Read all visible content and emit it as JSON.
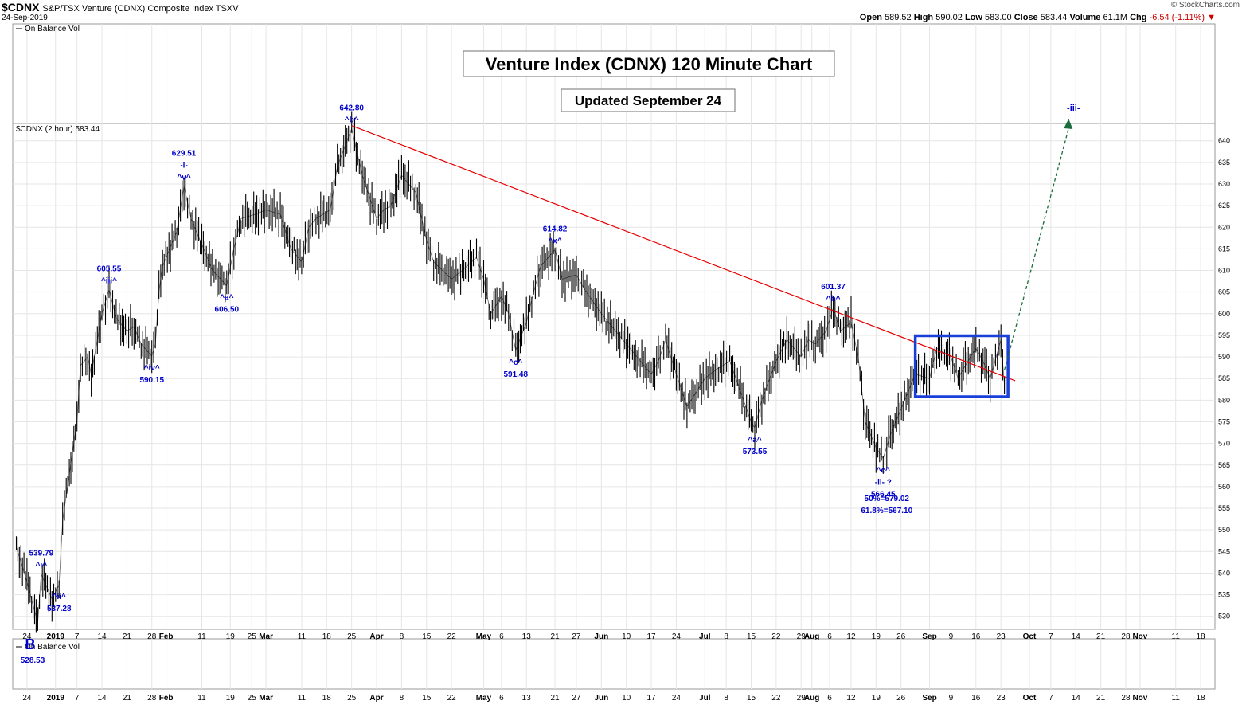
{
  "header": {
    "symbol": "$CDNX",
    "name": "S&P/TSX Venture (CDNX) Composite Index  TSXV",
    "date": "24-Sep-2019",
    "open_label": "Open",
    "open": "589.52",
    "high_label": "High",
    "high": "590.02",
    "low_label": "Low",
    "low": "583.00",
    "close_label": "Close",
    "close": "583.44",
    "volume_label": "Volume",
    "volume": "61.1M",
    "chg_label": "Chg",
    "chg": "-6.54 (-1.11%)",
    "credit": "© StockCharts.com"
  },
  "colors": {
    "price": "#000000",
    "trendline": "#e60000",
    "annotation": "#0000cc",
    "box": "#1a3fd8",
    "projection": "#1b6e3c",
    "grid": "#e6e6e6",
    "frame": "#999999"
  },
  "chart_data": {
    "type": "line",
    "title": "Venture Index (CDNX) 120 Minute Chart",
    "subtitle": "Updated September 24",
    "legend_top": "On Balance Vol",
    "legend_bottom": "On Balance Vol",
    "price_label": "$CDNX (2 hour) 583.44",
    "ylim": [
      527,
      644
    ],
    "y_ticks": [
      530,
      535,
      540,
      545,
      550,
      555,
      560,
      565,
      570,
      575,
      580,
      585,
      590,
      595,
      600,
      605,
      610,
      615,
      620,
      625,
      630,
      635,
      640
    ],
    "x_ticks": [
      {
        "label": "24",
        "date": "2018-12-24"
      },
      {
        "label": "2019",
        "date": "2019-01-01",
        "bold": true
      },
      {
        "label": "7",
        "date": "2019-01-07"
      },
      {
        "label": "14",
        "date": "2019-01-14"
      },
      {
        "label": "21",
        "date": "2019-01-21"
      },
      {
        "label": "28",
        "date": "2019-01-28"
      },
      {
        "label": "Feb",
        "date": "2019-02-01",
        "bold": true
      },
      {
        "label": "11",
        "date": "2019-02-11"
      },
      {
        "label": "19",
        "date": "2019-02-19"
      },
      {
        "label": "25",
        "date": "2019-02-25"
      },
      {
        "label": "Mar",
        "date": "2019-03-01",
        "bold": true
      },
      {
        "label": "11",
        "date": "2019-03-11"
      },
      {
        "label": "18",
        "date": "2019-03-18"
      },
      {
        "label": "25",
        "date": "2019-03-25"
      },
      {
        "label": "Apr",
        "date": "2019-04-01",
        "bold": true
      },
      {
        "label": "8",
        "date": "2019-04-08"
      },
      {
        "label": "15",
        "date": "2019-04-15"
      },
      {
        "label": "22",
        "date": "2019-04-22"
      },
      {
        "label": "May",
        "date": "2019-05-01",
        "bold": true
      },
      {
        "label": "6",
        "date": "2019-05-06"
      },
      {
        "label": "13",
        "date": "2019-05-13"
      },
      {
        "label": "21",
        "date": "2019-05-21"
      },
      {
        "label": "27",
        "date": "2019-05-27"
      },
      {
        "label": "Jun",
        "date": "2019-06-03",
        "bold": true
      },
      {
        "label": "10",
        "date": "2019-06-10"
      },
      {
        "label": "17",
        "date": "2019-06-17"
      },
      {
        "label": "24",
        "date": "2019-06-24"
      },
      {
        "label": "Jul",
        "date": "2019-07-02",
        "bold": true
      },
      {
        "label": "8",
        "date": "2019-07-08"
      },
      {
        "label": "15",
        "date": "2019-07-15"
      },
      {
        "label": "22",
        "date": "2019-07-22"
      },
      {
        "label": "29",
        "date": "2019-07-29"
      },
      {
        "label": "Aug",
        "date": "2019-08-01",
        "bold": true
      },
      {
        "label": "6",
        "date": "2019-08-06"
      },
      {
        "label": "12",
        "date": "2019-08-12"
      },
      {
        "label": "19",
        "date": "2019-08-19"
      },
      {
        "label": "26",
        "date": "2019-08-26"
      },
      {
        "label": "Sep",
        "date": "2019-09-03",
        "bold": true
      },
      {
        "label": "9",
        "date": "2019-09-09"
      },
      {
        "label": "16",
        "date": "2019-09-16"
      },
      {
        "label": "23",
        "date": "2019-09-23"
      },
      {
        "label": "Oct",
        "date": "2019-10-01",
        "bold": true
      },
      {
        "label": "7",
        "date": "2019-10-07"
      },
      {
        "label": "14",
        "date": "2019-10-14"
      },
      {
        "label": "21",
        "date": "2019-10-21"
      },
      {
        "label": "28",
        "date": "2019-10-28"
      },
      {
        "label": "Nov",
        "date": "2019-11-01",
        "bold": true
      },
      {
        "label": "11",
        "date": "2019-11-11"
      },
      {
        "label": "18",
        "date": "2019-11-18"
      }
    ],
    "series": [
      {
        "values": [
          [
            "2018-12-21",
            546
          ],
          [
            "2018-12-24",
            538
          ],
          [
            "2018-12-27",
            528.5
          ],
          [
            "2018-12-28",
            539.8
          ],
          [
            "2018-12-31",
            534
          ],
          [
            "2019-01-02",
            537.3
          ],
          [
            "2019-01-03",
            552
          ],
          [
            "2019-01-04",
            558
          ],
          [
            "2019-01-07",
            575
          ],
          [
            "2019-01-08",
            588
          ],
          [
            "2019-01-10",
            590
          ],
          [
            "2019-01-11",
            586
          ],
          [
            "2019-01-14",
            600
          ],
          [
            "2019-01-16",
            605.6
          ],
          [
            "2019-01-18",
            599
          ],
          [
            "2019-01-21",
            596
          ],
          [
            "2019-01-23",
            597
          ],
          [
            "2019-01-25",
            593
          ],
          [
            "2019-01-28",
            590.2
          ],
          [
            "2019-01-29",
            593
          ],
          [
            "2019-01-30",
            605
          ],
          [
            "2019-01-31",
            611
          ],
          [
            "2019-02-04",
            619
          ],
          [
            "2019-02-06",
            629.5
          ],
          [
            "2019-02-08",
            622
          ],
          [
            "2019-02-11",
            616
          ],
          [
            "2019-02-14",
            610
          ],
          [
            "2019-02-18",
            606.5
          ],
          [
            "2019-02-20",
            615
          ],
          [
            "2019-02-22",
            622
          ],
          [
            "2019-02-26",
            623
          ],
          [
            "2019-03-01",
            624
          ],
          [
            "2019-03-05",
            623
          ],
          [
            "2019-03-08",
            615
          ],
          [
            "2019-03-11",
            612
          ],
          [
            "2019-03-13",
            620
          ],
          [
            "2019-03-15",
            622
          ],
          [
            "2019-03-19",
            624
          ],
          [
            "2019-03-21",
            634
          ],
          [
            "2019-03-25",
            642.8
          ],
          [
            "2019-03-28",
            632
          ],
          [
            "2019-04-01",
            622
          ],
          [
            "2019-04-03",
            624
          ],
          [
            "2019-04-05",
            625
          ],
          [
            "2019-04-08",
            632
          ],
          [
            "2019-04-10",
            630
          ],
          [
            "2019-04-12",
            628
          ],
          [
            "2019-04-15",
            617
          ],
          [
            "2019-04-17",
            612
          ],
          [
            "2019-04-22",
            608
          ],
          [
            "2019-04-25",
            610
          ],
          [
            "2019-04-29",
            613
          ],
          [
            "2019-05-01",
            608
          ],
          [
            "2019-05-03",
            600
          ],
          [
            "2019-05-06",
            604
          ],
          [
            "2019-05-08",
            600
          ],
          [
            "2019-05-10",
            591.5
          ],
          [
            "2019-05-13",
            598
          ],
          [
            "2019-05-15",
            605
          ],
          [
            "2019-05-17",
            611
          ],
          [
            "2019-05-21",
            614.8
          ],
          [
            "2019-05-23",
            608
          ],
          [
            "2019-05-27",
            609
          ],
          [
            "2019-05-29",
            606
          ],
          [
            "2019-06-03",
            600
          ],
          [
            "2019-06-06",
            597
          ],
          [
            "2019-06-10",
            593
          ],
          [
            "2019-06-13",
            590
          ],
          [
            "2019-06-17",
            586
          ],
          [
            "2019-06-19",
            589
          ],
          [
            "2019-06-21",
            594
          ],
          [
            "2019-06-24",
            586
          ],
          [
            "2019-06-27",
            578.5
          ],
          [
            "2019-07-02",
            585
          ],
          [
            "2019-07-05",
            587
          ],
          [
            "2019-07-09",
            589
          ],
          [
            "2019-07-12",
            582
          ],
          [
            "2019-07-15",
            575
          ],
          [
            "2019-07-16",
            573.6
          ],
          [
            "2019-07-18",
            580
          ],
          [
            "2019-07-22",
            589
          ],
          [
            "2019-07-25",
            594
          ],
          [
            "2019-07-29",
            590
          ],
          [
            "2019-07-31",
            594
          ],
          [
            "2019-08-02",
            593
          ],
          [
            "2019-08-05",
            596
          ],
          [
            "2019-08-07",
            601.4
          ],
          [
            "2019-08-09",
            596
          ],
          [
            "2019-08-12",
            598
          ],
          [
            "2019-08-14",
            590
          ],
          [
            "2019-08-16",
            575
          ],
          [
            "2019-08-19",
            569
          ],
          [
            "2019-08-21",
            566.5
          ],
          [
            "2019-08-23",
            572
          ],
          [
            "2019-08-27",
            580
          ],
          [
            "2019-08-30",
            586
          ],
          [
            "2019-09-03",
            585
          ],
          [
            "2019-09-05",
            592
          ],
          [
            "2019-09-09",
            590
          ],
          [
            "2019-09-11",
            585
          ],
          [
            "2019-09-13",
            588
          ],
          [
            "2019-09-16",
            592
          ],
          [
            "2019-09-18",
            589
          ],
          [
            "2019-09-20",
            585
          ],
          [
            "2019-09-22",
            591
          ],
          [
            "2019-09-23",
            594
          ],
          [
            "2019-09-24",
            583.4
          ]
        ]
      }
    ],
    "trendline": {
      "from": [
        "2019-03-25",
        643.5
      ],
      "to": [
        "2019-09-27",
        584.5
      ]
    },
    "consolidation_box": {
      "x": [
        "2019-08-30",
        "2019-09-25"
      ],
      "y": [
        580.8,
        594.9
      ]
    },
    "projection": {
      "from": [
        "2019-09-24",
        587
      ],
      "to": [
        "2019-10-12",
        644
      ],
      "label": "-iii-"
    },
    "annotations": [
      {
        "date": "2018-12-28",
        "y": 539.8,
        "lines": [
          "539.79",
          "^i^"
        ],
        "pos": "above"
      },
      {
        "date": "2019-01-02",
        "y": 537.3,
        "lines": [
          "^ii^",
          "537.28"
        ],
        "pos": "below"
      },
      {
        "date": "2019-01-16",
        "y": 605.6,
        "lines": [
          "605.55",
          "^iii^"
        ],
        "pos": "above"
      },
      {
        "date": "2019-01-28",
        "y": 590.2,
        "lines": [
          "^iv^",
          "590.15"
        ],
        "pos": "below"
      },
      {
        "date": "2019-02-06",
        "y": 629.5,
        "lines": [
          "629.51",
          "-i-",
          "^v^"
        ],
        "pos": "above"
      },
      {
        "date": "2019-02-18",
        "y": 606.5,
        "lines": [
          "^a^",
          "606.50"
        ],
        "pos": "below"
      },
      {
        "date": "2019-03-25",
        "y": 642.8,
        "lines": [
          "642.80",
          "^b^"
        ],
        "pos": "above"
      },
      {
        "date": "2019-05-10",
        "y": 591.5,
        "lines": [
          "^c^",
          "591.48"
        ],
        "pos": "below"
      },
      {
        "date": "2019-05-21",
        "y": 614.8,
        "lines": [
          "614.82",
          "^x^"
        ],
        "pos": "above"
      },
      {
        "date": "2019-07-16",
        "y": 573.6,
        "lines": [
          "^a^",
          "573.55"
        ],
        "pos": "below"
      },
      {
        "date": "2019-08-07",
        "y": 601.4,
        "lines": [
          "601.37",
          "^b^"
        ],
        "pos": "above"
      },
      {
        "date": "2019-08-21",
        "y": 566.5,
        "lines": [
          "^c^",
          "-ii- ?",
          "566.45"
        ],
        "pos": "below"
      },
      {
        "date": "2019-08-22",
        "y": 560,
        "lines": [
          "50%=579.02",
          "61.8%=567.10"
        ],
        "pos": "below"
      }
    ],
    "low_marker": {
      "label": "B",
      "value": "528.53"
    }
  }
}
